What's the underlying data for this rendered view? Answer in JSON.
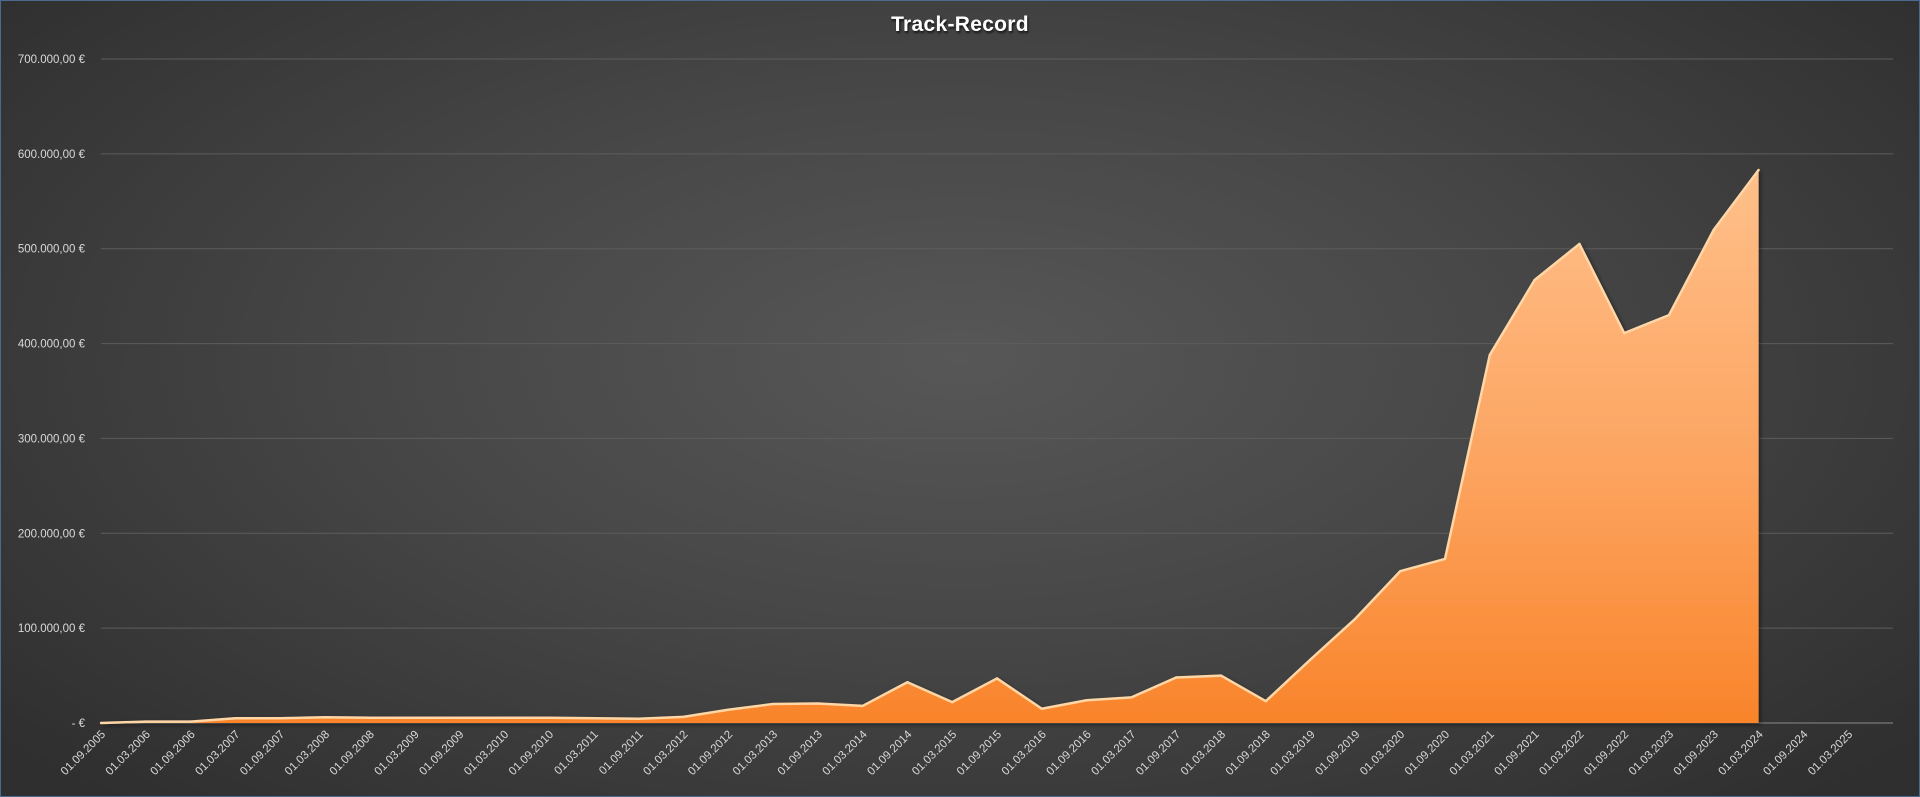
{
  "chart_data": {
    "type": "area",
    "title": "Track-Record",
    "xlabel": "",
    "ylabel": "",
    "ylim": [
      0,
      700000
    ],
    "y_ticks": [
      0,
      100000,
      200000,
      300000,
      400000,
      500000,
      600000,
      700000
    ],
    "y_tick_labels": [
      "-  €",
      "100.000,00 €",
      "200.000,00 €",
      "300.000,00 €",
      "400.000,00 €",
      "500.000,00 €",
      "600.000,00 €",
      "700.000,00 €"
    ],
    "x": [
      "01.09.2005",
      "01.03.2006",
      "01.09.2006",
      "01.03.2007",
      "01.09.2007",
      "01.03.2008",
      "01.09.2008",
      "01.03.2009",
      "01.09.2009",
      "01.03.2010",
      "01.09.2010",
      "01.03.2011",
      "01.09.2011",
      "01.03.2012",
      "01.09.2012",
      "01.03.2013",
      "01.09.2013",
      "01.03.2014",
      "01.09.2014",
      "01.03.2015",
      "01.09.2015",
      "01.03.2016",
      "01.09.2016",
      "01.03.2017",
      "01.09.2017",
      "01.03.2018",
      "01.09.2018",
      "01.03.2019",
      "01.09.2019",
      "01.03.2020",
      "01.09.2020",
      "01.03.2021",
      "01.09.2021",
      "01.03.2022",
      "01.09.2022",
      "01.03.2023",
      "01.09.2023",
      "01.03.2024",
      "01.09.2024",
      "01.03.2025"
    ],
    "series": [
      {
        "values": [
          0,
          1500,
          1500,
          5000,
          5000,
          6000,
          5500,
          5500,
          5500,
          5500,
          5500,
          5000,
          4500,
          6500,
          14000,
          20000,
          20500,
          18000,
          43000,
          22000,
          47000,
          15000,
          24000,
          27000,
          48000,
          50000,
          23000,
          67000,
          110000,
          160000,
          173000,
          388000,
          467000,
          505000,
          411000,
          430000,
          520000,
          583000,
          null,
          null
        ],
        "color": "#f79a4d"
      }
    ],
    "legend": "none",
    "grid": true,
    "colors": {
      "area_top": "#ffc08a",
      "area_bottom": "#f9842a",
      "line": "#ffd6a6",
      "grid": "#5d5d5d",
      "text": "#d9d9d9"
    }
  }
}
